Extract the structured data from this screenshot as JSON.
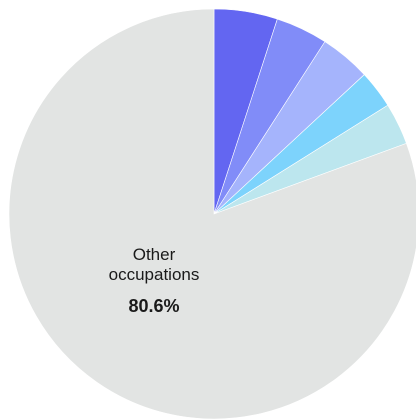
{
  "chart_data": {
    "type": "pie",
    "slices": [
      {
        "value": 5.0,
        "color": "#6366f1"
      },
      {
        "value": 4.1,
        "color": "#818cf8"
      },
      {
        "value": 4.0,
        "color": "#a5b4fc"
      },
      {
        "value": 3.0,
        "color": "#7dd3fc"
      },
      {
        "value": 3.3,
        "color": "#bce6ee"
      },
      {
        "value": 80.6,
        "color": "#e2e4e3",
        "label_line1": "Other",
        "label_line2": "occupations",
        "label_value": "80.6%"
      }
    ]
  }
}
